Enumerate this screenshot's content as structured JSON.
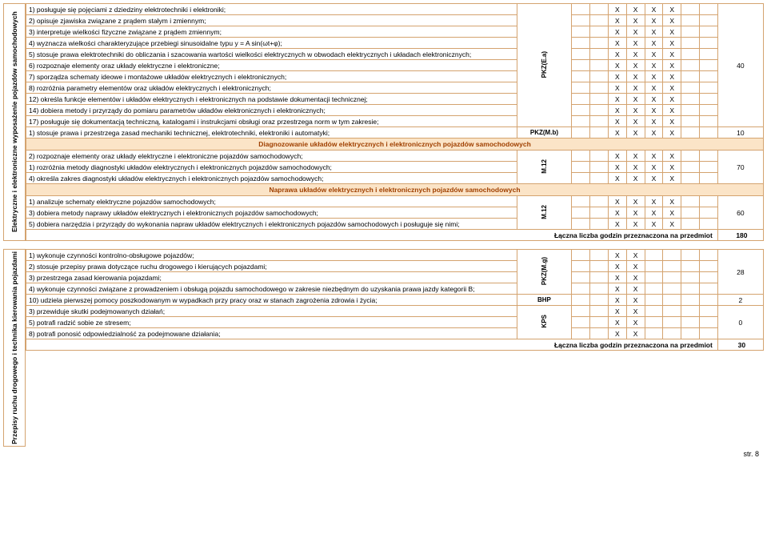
{
  "footer": "str. 8",
  "block1": {
    "sideLabel": "Elektryczne i elektroniczne wyposażenie pojazdów samochodowych",
    "vcode1": "PKZ(E.a)",
    "vcode2": "M.12",
    "vcode3": "M.12",
    "rows1": [
      {
        "t": "1) posługuje się pojęciami z dziedziny elektrotechniki i elektroniki;",
        "x": [
          "",
          "",
          "X",
          "X",
          "X",
          "X",
          "",
          ""
        ]
      },
      {
        "t": "2) opisuje zjawiska związane z prądem stałym i zmiennym;",
        "x": [
          "",
          "",
          "X",
          "X",
          "X",
          "X",
          "",
          ""
        ]
      },
      {
        "t": "3) interpretuje wielkości fizyczne związane z prądem zmiennym;",
        "x": [
          "",
          "",
          "X",
          "X",
          "X",
          "X",
          "",
          ""
        ]
      },
      {
        "t": "4) wyznacza wielkości charakteryzujące przebiegi sinusoidalne typu y = A sin(ωt+φ);",
        "x": [
          "",
          "",
          "X",
          "X",
          "X",
          "X",
          "",
          ""
        ]
      },
      {
        "t": "5) stosuje prawa elektrotechniki do obliczania i szacowania wartości wielkości elektrycznych w obwodach elektrycznych i układach elektronicznych;",
        "x": [
          "",
          "",
          "X",
          "X",
          "X",
          "X",
          "",
          ""
        ]
      },
      {
        "t": "6) rozpoznaje elementy oraz układy elektryczne i elektroniczne;",
        "x": [
          "",
          "",
          "X",
          "X",
          "X",
          "X",
          "",
          ""
        ]
      },
      {
        "t": "7) sporządza schematy ideowe i montażowe układów elektrycznych i elektronicznych;",
        "x": [
          "",
          "",
          "X",
          "X",
          "X",
          "X",
          "",
          ""
        ]
      },
      {
        "t": "8) rozróżnia parametry elementów oraz układów elektrycznych i elektronicznych;",
        "x": [
          "",
          "",
          "X",
          "X",
          "X",
          "X",
          "",
          ""
        ]
      },
      {
        "t": "12) określa funkcje elementów i układów elektrycznych i elektronicznych na podstawie dokumentacji technicznej;",
        "x": [
          "",
          "",
          "X",
          "X",
          "X",
          "X",
          "",
          ""
        ]
      },
      {
        "t": "14) dobiera metody i przyrządy do pomiaru parametrów układów elektronicznych i elektronicznych;",
        "x": [
          "",
          "",
          "X",
          "X",
          "X",
          "X",
          "",
          ""
        ]
      },
      {
        "t": "17) posługuje się dokumentacją techniczną, katalogami i instrukcjami obsługi oraz przestrzega norm w tym zakresie;",
        "x": [
          "",
          "",
          "X",
          "X",
          "X",
          "X",
          "",
          ""
        ]
      }
    ],
    "hours1": "40",
    "row_mb": {
      "t": "1) stosuje prawa i przestrzega zasad mechaniki technicznej, elektrotechniki, elektroniki i automatyki;",
      "code": "PKZ(M.b)",
      "x": [
        "",
        "",
        "X",
        "X",
        "X",
        "X",
        "",
        ""
      ],
      "h": "10"
    },
    "hdr2": "Diagnozowanie układów elektrycznych i elektronicznych pojazdów samochodowych",
    "rows2": [
      {
        "t": "2) rozpoznaje elementy oraz układy elektryczne i elektroniczne pojazdów samochodowych;",
        "x": [
          "",
          "",
          "X",
          "X",
          "X",
          "X",
          "",
          ""
        ]
      },
      {
        "t": "1) rozróżnia metody diagnostyki układów elektrycznych i elektronicznych pojazdów samochodowych;",
        "x": [
          "",
          "",
          "X",
          "X",
          "X",
          "X",
          "",
          ""
        ]
      },
      {
        "t": "4) określa zakres diagnostyki układów elektrycznych i elektronicznych pojazdów samochodowych;",
        "x": [
          "",
          "",
          "X",
          "X",
          "X",
          "X",
          "",
          ""
        ]
      }
    ],
    "hours2": "70",
    "hdr3": "Naprawa układów elektrycznych i elektronicznych pojazdów samochodowych",
    "rows3": [
      {
        "t": "1) analizuje schematy elektryczne pojazdów samochodowych;",
        "x": [
          "",
          "",
          "X",
          "X",
          "X",
          "X",
          "",
          ""
        ]
      },
      {
        "t": "3) dobiera metody naprawy układów elektrycznych i elektronicznych pojazdów samochodowych;",
        "x": [
          "",
          "",
          "X",
          "X",
          "X",
          "X",
          "",
          ""
        ]
      },
      {
        "t": "5) dobiera narzędzia i przyrządy do wykonania napraw układów elektrycznych i elektronicznych pojazdów samochodowych i posługuje się nimi;",
        "x": [
          "",
          "",
          "X",
          "X",
          "X",
          "X",
          "",
          ""
        ]
      }
    ],
    "hours3": "60",
    "totalLabel": "Łączna liczba godzin przeznaczona na przedmiot",
    "total": "180"
  },
  "block2": {
    "sideLabel": "Przepisy ruchu drogowego i technika kierowania pojazdami",
    "vcode1": "PKZ(M.g)",
    "rows1": [
      {
        "t": "1) wykonuje czynności kontrolno-obsługowe pojazdów;",
        "x": [
          "",
          "",
          "X",
          "X",
          "",
          "",
          "",
          ""
        ]
      },
      {
        "t": "2) stosuje przepisy prawa dotyczące ruchu drogowego i kierujących pojazdami;",
        "x": [
          "",
          "",
          "X",
          "X",
          "",
          "",
          "",
          ""
        ]
      },
      {
        "t": "3) przestrzega zasad kierowania pojazdami;",
        "x": [
          "",
          "",
          "X",
          "X",
          "",
          "",
          "",
          ""
        ]
      },
      {
        "t": "4) wykonuje czynności związane z prowadzeniem i obsługą pojazdu samochodowego w zakresie niezbędnym do uzyskania prawa jazdy kategorii B;",
        "x": [
          "",
          "",
          "X",
          "X",
          "",
          "",
          "",
          ""
        ]
      }
    ],
    "hours1": "28",
    "row_bhp": {
      "t": "10) udziela pierwszej pomocy poszkodowanym w wypadkach przy pracy oraz w stanach zagrożenia zdrowia i życia;",
      "code": "BHP",
      "x": [
        "",
        "",
        "X",
        "X",
        "",
        "",
        "",
        ""
      ],
      "h": "2"
    },
    "rows_kps": [
      {
        "t": "3) przewiduje skutki podejmowanych działań;",
        "x": [
          "",
          "",
          "X",
          "X",
          "",
          "",
          "",
          ""
        ]
      },
      {
        "t": "5) potrafi radzić sobie ze stresem;",
        "x": [
          "",
          "",
          "X",
          "X",
          "",
          "",
          "",
          ""
        ]
      },
      {
        "t": "8) potrafi ponosić odpowiedzialność za podejmowane działania;",
        "x": [
          "",
          "",
          "X",
          "X",
          "",
          "",
          "",
          ""
        ]
      }
    ],
    "code_kps": "KPS",
    "hours_kps": "0",
    "totalLabel": "Łączna liczba godzin przeznaczona na przedmiot",
    "total": "30"
  }
}
